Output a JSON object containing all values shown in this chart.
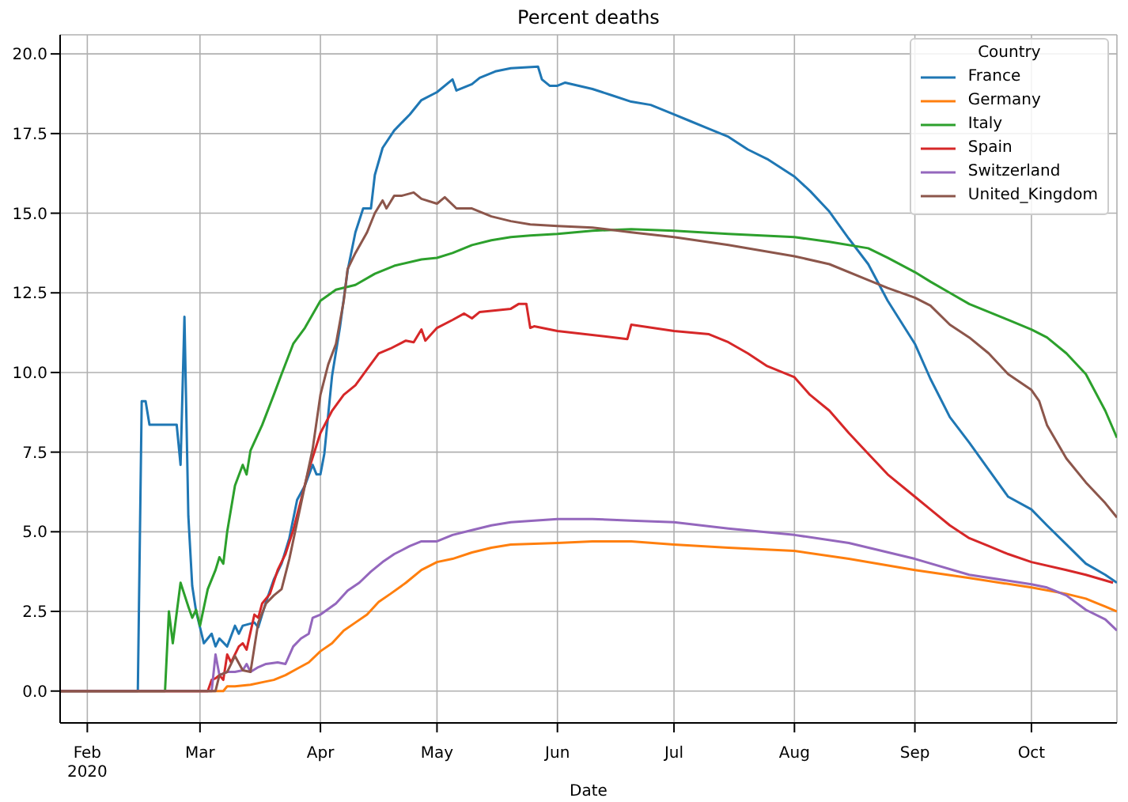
{
  "chart_data": {
    "type": "line",
    "title": "Percent deaths",
    "xlabel": "Date",
    "legend_title": "Country",
    "legend": "top right",
    "grid": true,
    "xlim": [
      "2020-01-25",
      "2020-10-23"
    ],
    "xticks": [
      {
        "value": "2020-02-01",
        "label": "Feb\n2020"
      },
      {
        "value": "2020-03-01",
        "label": "Mar"
      },
      {
        "value": "2020-04-01",
        "label": "Apr"
      },
      {
        "value": "2020-05-01",
        "label": "May"
      },
      {
        "value": "2020-06-01",
        "label": "Jun"
      },
      {
        "value": "2020-07-01",
        "label": "Jul"
      },
      {
        "value": "2020-08-01",
        "label": "Aug"
      },
      {
        "value": "2020-09-01",
        "label": "Sep"
      },
      {
        "value": "2020-10-01",
        "label": "Oct"
      }
    ],
    "ylim": [
      -1,
      20.6
    ],
    "yticks": [
      {
        "value": 0,
        "label": "0.0"
      },
      {
        "value": 2.5,
        "label": "2.5"
      },
      {
        "value": 5,
        "label": "5.0"
      },
      {
        "value": 7.5,
        "label": "7.5"
      },
      {
        "value": 10,
        "label": "10.0"
      },
      {
        "value": 12.5,
        "label": "12.5"
      },
      {
        "value": 15,
        "label": "15.0"
      },
      {
        "value": 17.5,
        "label": "17.5"
      },
      {
        "value": 20,
        "label": "20.0"
      }
    ],
    "series": [
      {
        "name": "France",
        "color": "#1f77b4",
        "x": [
          "2020-01-25",
          "2020-02-14",
          "2020-02-15",
          "2020-02-16",
          "2020-02-17",
          "2020-02-24",
          "2020-02-25",
          "2020-02-26",
          "2020-02-27",
          "2020-02-28",
          "2020-02-29",
          "2020-03-01",
          "2020-03-02",
          "2020-03-04",
          "2020-03-05",
          "2020-03-06",
          "2020-03-08",
          "2020-03-10",
          "2020-03-11",
          "2020-03-12",
          "2020-03-15",
          "2020-03-16",
          "2020-03-18",
          "2020-03-20",
          "2020-03-22",
          "2020-03-24",
          "2020-03-26",
          "2020-03-28",
          "2020-03-30",
          "2020-03-31",
          "2020-04-01",
          "2020-04-02",
          "2020-04-04",
          "2020-04-06",
          "2020-04-08",
          "2020-04-10",
          "2020-04-12",
          "2020-04-14",
          "2020-04-15",
          "2020-04-17",
          "2020-04-20",
          "2020-04-24",
          "2020-04-27",
          "2020-05-01",
          "2020-05-05",
          "2020-05-06",
          "2020-05-10",
          "2020-05-12",
          "2020-05-16",
          "2020-05-20",
          "2020-05-27",
          "2020-05-28",
          "2020-05-30",
          "2020-06-01",
          "2020-06-03",
          "2020-06-10",
          "2020-06-15",
          "2020-06-20",
          "2020-06-25",
          "2020-07-01",
          "2020-07-05",
          "2020-07-10",
          "2020-07-15",
          "2020-07-20",
          "2020-07-25",
          "2020-08-01",
          "2020-08-05",
          "2020-08-10",
          "2020-08-15",
          "2020-08-20",
          "2020-08-25",
          "2020-09-01",
          "2020-09-05",
          "2020-09-10",
          "2020-09-15",
          "2020-09-20",
          "2020-09-25",
          "2020-10-01",
          "2020-10-05",
          "2020-10-10",
          "2020-10-15",
          "2020-10-20",
          "2020-10-23"
        ],
        "values": [
          0,
          0,
          9.1,
          9.1,
          8.36,
          8.36,
          7.1,
          11.75,
          5.5,
          3.3,
          2.5,
          2.0,
          1.5,
          1.8,
          1.4,
          1.65,
          1.4,
          2.05,
          1.8,
          2.05,
          2.15,
          2.0,
          2.8,
          3.5,
          4.0,
          4.8,
          6.0,
          6.45,
          7.1,
          6.8,
          6.8,
          7.45,
          9.9,
          11.4,
          13.2,
          14.4,
          15.15,
          15.15,
          16.2,
          17.05,
          17.6,
          18.1,
          18.55,
          18.8,
          19.2,
          18.85,
          19.05,
          19.25,
          19.45,
          19.55,
          19.6,
          19.2,
          19.0,
          19.0,
          19.1,
          18.9,
          18.7,
          18.5,
          18.4,
          18.1,
          17.9,
          17.65,
          17.4,
          17.0,
          16.7,
          16.15,
          15.7,
          15.05,
          14.2,
          13.4,
          12.25,
          10.9,
          9.8,
          8.6,
          7.8,
          6.95,
          6.1,
          5.7,
          5.2,
          4.6,
          4.0,
          3.65,
          3.4
        ]
      },
      {
        "name": "Germany",
        "color": "#ff7f0e",
        "x": [
          "2020-01-25",
          "2020-03-07",
          "2020-03-08",
          "2020-03-10",
          "2020-03-14",
          "2020-03-18",
          "2020-03-20",
          "2020-03-23",
          "2020-03-26",
          "2020-03-29",
          "2020-04-01",
          "2020-04-04",
          "2020-04-07",
          "2020-04-10",
          "2020-04-13",
          "2020-04-16",
          "2020-04-19",
          "2020-04-23",
          "2020-04-27",
          "2020-05-01",
          "2020-05-05",
          "2020-05-10",
          "2020-05-15",
          "2020-05-20",
          "2020-06-01",
          "2020-06-10",
          "2020-06-20",
          "2020-07-01",
          "2020-07-15",
          "2020-08-01",
          "2020-08-15",
          "2020-09-01",
          "2020-09-15",
          "2020-10-01",
          "2020-10-10",
          "2020-10-15",
          "2020-10-20",
          "2020-10-23"
        ],
        "values": [
          0,
          0,
          0.15,
          0.15,
          0.2,
          0.3,
          0.35,
          0.5,
          0.7,
          0.9,
          1.25,
          1.5,
          1.9,
          2.15,
          2.4,
          2.8,
          3.05,
          3.4,
          3.8,
          4.05,
          4.15,
          4.35,
          4.5,
          4.6,
          4.65,
          4.7,
          4.7,
          4.6,
          4.5,
          4.4,
          4.15,
          3.8,
          3.55,
          3.25,
          3.05,
          2.9,
          2.65,
          2.5
        ]
      },
      {
        "name": "Italy",
        "color": "#2ca02c",
        "x": [
          "2020-01-25",
          "2020-02-21",
          "2020-02-22",
          "2020-02-23",
          "2020-02-25",
          "2020-02-27",
          "2020-02-28",
          "2020-02-29",
          "2020-03-01",
          "2020-03-03",
          "2020-03-05",
          "2020-03-06",
          "2020-03-07",
          "2020-03-08",
          "2020-03-10",
          "2020-03-12",
          "2020-03-13",
          "2020-03-14",
          "2020-03-17",
          "2020-03-20",
          "2020-03-22",
          "2020-03-25",
          "2020-03-28",
          "2020-04-01",
          "2020-04-05",
          "2020-04-10",
          "2020-04-15",
          "2020-04-20",
          "2020-04-27",
          "2020-05-01",
          "2020-05-05",
          "2020-05-10",
          "2020-05-15",
          "2020-05-20",
          "2020-05-25",
          "2020-06-01",
          "2020-06-10",
          "2020-06-20",
          "2020-07-01",
          "2020-07-15",
          "2020-08-01",
          "2020-08-10",
          "2020-08-20",
          "2020-08-25",
          "2020-09-01",
          "2020-09-05",
          "2020-09-10",
          "2020-09-15",
          "2020-09-20",
          "2020-09-25",
          "2020-10-01",
          "2020-10-05",
          "2020-10-10",
          "2020-10-15",
          "2020-10-20",
          "2020-10-23"
        ],
        "values": [
          0,
          0,
          2.5,
          1.5,
          3.4,
          2.65,
          2.3,
          2.55,
          2.05,
          3.2,
          3.8,
          4.2,
          4.0,
          5.0,
          6.45,
          7.1,
          6.8,
          7.55,
          8.35,
          9.3,
          9.95,
          10.9,
          11.4,
          12.25,
          12.6,
          12.75,
          13.1,
          13.35,
          13.55,
          13.6,
          13.75,
          14.0,
          14.15,
          14.25,
          14.3,
          14.35,
          14.45,
          14.5,
          14.45,
          14.35,
          14.25,
          14.1,
          13.9,
          13.6,
          13.15,
          12.85,
          12.5,
          12.15,
          11.9,
          11.65,
          11.35,
          11.1,
          10.6,
          9.95,
          8.8,
          7.95
        ]
      },
      {
        "name": "Spain",
        "color": "#d62728",
        "x": [
          "2020-01-25",
          "2020-03-03",
          "2020-03-04",
          "2020-03-05",
          "2020-03-06",
          "2020-03-07",
          "2020-03-08",
          "2020-03-09",
          "2020-03-11",
          "2020-03-12",
          "2020-03-13",
          "2020-03-15",
          "2020-03-16",
          "2020-03-17",
          "2020-03-19",
          "2020-03-21",
          "2020-03-23",
          "2020-03-25",
          "2020-03-27",
          "2020-03-29",
          "2020-04-01",
          "2020-04-04",
          "2020-04-07",
          "2020-04-10",
          "2020-04-13",
          "2020-04-16",
          "2020-04-19",
          "2020-04-23",
          "2020-04-25",
          "2020-04-27",
          "2020-04-28",
          "2020-05-01",
          "2020-05-05",
          "2020-05-08",
          "2020-05-10",
          "2020-05-12",
          "2020-05-20",
          "2020-05-22",
          "2020-05-24",
          "2020-05-25",
          "2020-05-26",
          "2020-06-01",
          "2020-06-19",
          "2020-06-20",
          "2020-07-01",
          "2020-07-10",
          "2020-07-15",
          "2020-07-20",
          "2020-07-25",
          "2020-08-01",
          "2020-08-05",
          "2020-08-10",
          "2020-08-15",
          "2020-08-20",
          "2020-08-25",
          "2020-09-01",
          "2020-09-05",
          "2020-09-10",
          "2020-09-15",
          "2020-09-20",
          "2020-09-25",
          "2020-10-01",
          "2020-10-10",
          "2020-10-15",
          "2020-10-22"
        ],
        "values": [
          0,
          0,
          0.35,
          0.4,
          0.5,
          0.35,
          1.15,
          0.9,
          1.4,
          1.5,
          1.3,
          2.4,
          2.3,
          2.75,
          3.05,
          3.8,
          4.3,
          5.05,
          6.0,
          6.95,
          8.1,
          8.8,
          9.3,
          9.6,
          10.1,
          10.6,
          10.75,
          11.0,
          10.95,
          11.35,
          11.0,
          11.4,
          11.65,
          11.85,
          11.7,
          11.9,
          12.0,
          12.15,
          12.15,
          11.4,
          11.45,
          11.3,
          11.05,
          11.5,
          11.3,
          11.2,
          10.95,
          10.6,
          10.2,
          9.85,
          9.3,
          8.8,
          8.1,
          7.45,
          6.8,
          6.1,
          5.7,
          5.2,
          4.8,
          4.55,
          4.3,
          4.05,
          3.8,
          3.65,
          3.4
        ]
      },
      {
        "name": "Switzerland",
        "color": "#9467bd",
        "x": [
          "2020-01-25",
          "2020-03-04",
          "2020-03-05",
          "2020-03-06",
          "2020-03-08",
          "2020-03-10",
          "2020-03-12",
          "2020-03-13",
          "2020-03-14",
          "2020-03-16",
          "2020-03-18",
          "2020-03-21",
          "2020-03-23",
          "2020-03-25",
          "2020-03-27",
          "2020-03-29",
          "2020-03-30",
          "2020-04-01",
          "2020-04-05",
          "2020-04-08",
          "2020-04-11",
          "2020-04-14",
          "2020-04-17",
          "2020-04-20",
          "2020-04-24",
          "2020-04-27",
          "2020-05-01",
          "2020-05-05",
          "2020-05-10",
          "2020-05-15",
          "2020-05-20",
          "2020-06-01",
          "2020-06-10",
          "2020-06-20",
          "2020-07-01",
          "2020-07-15",
          "2020-08-01",
          "2020-08-15",
          "2020-09-01",
          "2020-09-15",
          "2020-10-01",
          "2020-10-05",
          "2020-10-10",
          "2020-10-15",
          "2020-10-20",
          "2020-10-23"
        ],
        "values": [
          0,
          0,
          1.15,
          0.5,
          0.6,
          0.6,
          0.65,
          0.85,
          0.6,
          0.75,
          0.85,
          0.9,
          0.85,
          1.4,
          1.65,
          1.8,
          2.3,
          2.4,
          2.75,
          3.15,
          3.4,
          3.75,
          4.05,
          4.3,
          4.55,
          4.7,
          4.7,
          4.9,
          5.05,
          5.2,
          5.3,
          5.4,
          5.4,
          5.35,
          5.3,
          5.1,
          4.9,
          4.65,
          4.15,
          3.65,
          3.35,
          3.25,
          3.0,
          2.55,
          2.25,
          1.9
        ]
      },
      {
        "name": "United_Kingdom",
        "color": "#8c564b",
        "x": [
          "2020-01-25",
          "2020-03-05",
          "2020-03-06",
          "2020-03-08",
          "2020-03-10",
          "2020-03-12",
          "2020-03-14",
          "2020-03-16",
          "2020-03-18",
          "2020-03-20",
          "2020-03-22",
          "2020-03-24",
          "2020-03-26",
          "2020-03-28",
          "2020-03-30",
          "2020-04-01",
          "2020-04-03",
          "2020-04-05",
          "2020-04-07",
          "2020-04-08",
          "2020-04-10",
          "2020-04-13",
          "2020-04-15",
          "2020-04-17",
          "2020-04-18",
          "2020-04-20",
          "2020-04-22",
          "2020-04-25",
          "2020-04-27",
          "2020-05-01",
          "2020-05-03",
          "2020-05-06",
          "2020-05-10",
          "2020-05-15",
          "2020-05-20",
          "2020-05-25",
          "2020-06-01",
          "2020-06-10",
          "2020-06-20",
          "2020-07-01",
          "2020-07-15",
          "2020-08-01",
          "2020-08-10",
          "2020-08-20",
          "2020-08-25",
          "2020-09-01",
          "2020-09-05",
          "2020-09-10",
          "2020-09-15",
          "2020-09-20",
          "2020-09-25",
          "2020-10-01",
          "2020-10-03",
          "2020-10-05",
          "2020-10-10",
          "2020-10-15",
          "2020-10-20",
          "2020-10-23"
        ],
        "values": [
          0,
          0,
          0.5,
          0.6,
          1.1,
          0.65,
          0.6,
          2.15,
          2.75,
          3.0,
          3.2,
          4.15,
          5.3,
          6.45,
          7.6,
          9.3,
          10.25,
          10.9,
          12.25,
          13.25,
          13.75,
          14.4,
          15.0,
          15.4,
          15.15,
          15.55,
          15.55,
          15.65,
          15.45,
          15.3,
          15.5,
          15.15,
          15.15,
          14.9,
          14.75,
          14.65,
          14.6,
          14.55,
          14.4,
          14.25,
          14.0,
          13.65,
          13.4,
          12.9,
          12.65,
          12.35,
          12.1,
          11.5,
          11.1,
          10.6,
          9.95,
          9.45,
          9.1,
          8.35,
          7.3,
          6.55,
          5.9,
          5.45
        ]
      }
    ]
  }
}
